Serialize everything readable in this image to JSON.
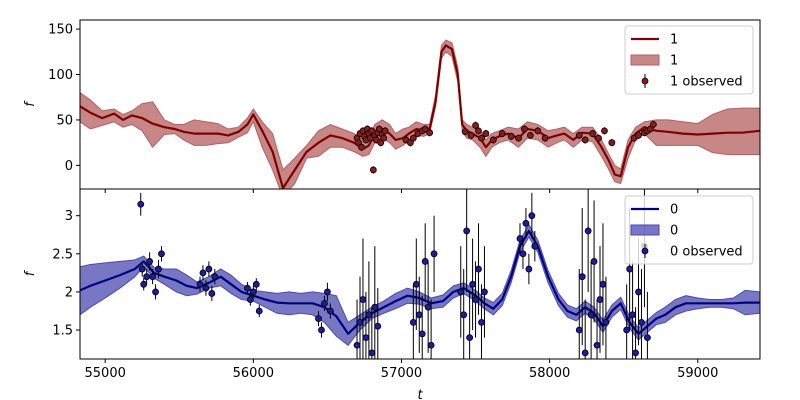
{
  "chart_data": [
    {
      "type": "line",
      "panel": "top",
      "ylabel": "f",
      "xlabel": "",
      "xlim": [
        54830,
        59420
      ],
      "ylim": [
        -26,
        160
      ],
      "yticks": [
        0,
        50,
        100,
        150
      ],
      "xticks": [
        55000,
        56000,
        57000,
        58000,
        59000
      ],
      "show_xtick_labels": false,
      "grid": false,
      "legend_placement": "top-right",
      "colors": {
        "line": "#800000",
        "band": "#b45f5f",
        "point": "#8b1a1a"
      },
      "legend": [
        {
          "kind": "line",
          "label": "1"
        },
        {
          "kind": "band",
          "label": "1"
        },
        {
          "kind": "errorbar",
          "label": "1 observed"
        }
      ],
      "series": [
        {
          "name": "1",
          "x": [
            54830,
            54900,
            54980,
            55060,
            55120,
            55180,
            55250,
            55320,
            55400,
            55470,
            55530,
            55600,
            55680,
            55760,
            55830,
            55900,
            55960,
            56000,
            56060,
            56130,
            56200,
            56280,
            56360,
            56440,
            56520,
            56600,
            56680,
            56740,
            56780,
            56820,
            56870,
            56920,
            56960,
            57010,
            57050,
            57100,
            57150,
            57190,
            57230,
            57270,
            57300,
            57340,
            57380,
            57410,
            57440,
            57480,
            57530,
            57570,
            57610,
            57660,
            57720,
            57790,
            57850,
            57920,
            57990,
            58050,
            58100,
            58160,
            58220,
            58290,
            58350,
            58400,
            58440,
            58480,
            58530,
            58580,
            58640,
            58720,
            58800,
            58900,
            59000,
            59100,
            59200,
            59300,
            59420
          ],
          "y": [
            65,
            58,
            52,
            57,
            50,
            55,
            52,
            46,
            42,
            40,
            37,
            35,
            35,
            35,
            33,
            37,
            45,
            56,
            38,
            15,
            -25,
            -5,
            15,
            25,
            33,
            30,
            25,
            18,
            22,
            35,
            40,
            35,
            28,
            30,
            35,
            40,
            38,
            40,
            70,
            125,
            132,
            128,
            100,
            45,
            38,
            35,
            30,
            20,
            28,
            32,
            35,
            30,
            40,
            38,
            30,
            33,
            35,
            28,
            36,
            35,
            20,
            5,
            -10,
            -12,
            20,
            35,
            42,
            38,
            37,
            35,
            34,
            35,
            36,
            36,
            38
          ],
          "lower": [
            48,
            40,
            44,
            48,
            42,
            45,
            38,
            20,
            34,
            35,
            28,
            22,
            22,
            24,
            25,
            31,
            36,
            48,
            20,
            -5,
            -35,
            -20,
            8,
            10,
            20,
            20,
            15,
            10,
            12,
            25,
            30,
            25,
            18,
            22,
            28,
            33,
            32,
            35,
            65,
            118,
            125,
            120,
            92,
            38,
            30,
            28,
            20,
            10,
            20,
            25,
            28,
            20,
            30,
            28,
            20,
            25,
            28,
            20,
            28,
            26,
            10,
            -5,
            -18,
            -20,
            8,
            28,
            35,
            22,
            22,
            22,
            22,
            14,
            12,
            12,
            12
          ],
          "upper": [
            80,
            72,
            60,
            62,
            56,
            60,
            68,
            70,
            50,
            45,
            45,
            50,
            48,
            46,
            40,
            42,
            52,
            62,
            48,
            35,
            -5,
            8,
            22,
            38,
            45,
            40,
            35,
            28,
            30,
            45,
            50,
            45,
            35,
            40,
            42,
            48,
            45,
            45,
            78,
            132,
            138,
            135,
            108,
            50,
            45,
            42,
            40,
            28,
            35,
            38,
            42,
            40,
            48,
            45,
            38,
            40,
            42,
            35,
            42,
            42,
            28,
            12,
            0,
            -4,
            28,
            42,
            48,
            50,
            50,
            48,
            46,
            56,
            62,
            63,
            63
          ]
        }
      ],
      "observed": {
        "name": "1 observed",
        "x": [
          56700,
          56710,
          56720,
          56730,
          56740,
          56750,
          56760,
          56770,
          56780,
          56790,
          56800,
          56810,
          56820,
          56830,
          56840,
          56850,
          56860,
          56870,
          56880,
          56890,
          57030,
          57060,
          57080,
          57110,
          57140,
          57160,
          57190,
          57430,
          57470,
          57500,
          57520,
          57540,
          57570,
          57620,
          57680,
          57740,
          57790,
          57830,
          57870,
          57920,
          57970,
          58200,
          58240,
          58290,
          58330,
          58370,
          58420,
          58570,
          58600,
          58640,
          58660,
          58680,
          58700
        ],
        "y": [
          30,
          25,
          35,
          20,
          38,
          32,
          28,
          40,
          35,
          30,
          38,
          -5,
          33,
          28,
          36,
          40,
          25,
          34,
          30,
          38,
          28,
          25,
          30,
          35,
          38,
          40,
          36,
          37,
          33,
          44,
          38,
          30,
          35,
          28,
          35,
          32,
          30,
          40,
          33,
          38,
          30,
          33,
          28,
          35,
          30,
          38,
          25,
          30,
          33,
          36,
          38,
          40,
          45
        ],
        "err": [
          4,
          4,
          4,
          4,
          4,
          4,
          4,
          4,
          4,
          4,
          4,
          4,
          4,
          4,
          4,
          4,
          4,
          4,
          4,
          4,
          4,
          4,
          4,
          4,
          4,
          4,
          4,
          4,
          4,
          4,
          4,
          4,
          4,
          4,
          4,
          4,
          4,
          4,
          4,
          4,
          4,
          4,
          4,
          4,
          4,
          4,
          4,
          4,
          4,
          4,
          4,
          4,
          4
        ]
      }
    },
    {
      "type": "line",
      "panel": "bottom",
      "ylabel": "f",
      "xlabel": "t",
      "xlim": [
        54830,
        59420
      ],
      "ylim": [
        1.12,
        3.35
      ],
      "yticks": [
        1.5,
        2.0,
        2.5,
        3.0
      ],
      "xticks": [
        55000,
        56000,
        57000,
        58000,
        59000
      ],
      "show_xtick_labels": true,
      "grid": false,
      "legend_placement": "top-right",
      "colors": {
        "line": "#000080",
        "band": "#4a4ab0",
        "point": "#1c1ca0"
      },
      "legend": [
        {
          "kind": "line",
          "label": "0"
        },
        {
          "kind": "band",
          "label": "0"
        },
        {
          "kind": "errorbar",
          "label": "0 observed"
        }
      ],
      "series": [
        {
          "name": "0",
          "x": [
            54830,
            54900,
            55000,
            55100,
            55200,
            55260,
            55330,
            55400,
            55480,
            55550,
            55620,
            55700,
            55780,
            55850,
            55920,
            56000,
            56080,
            56160,
            56240,
            56320,
            56400,
            56480,
            56560,
            56640,
            56720,
            56800,
            56880,
            56960,
            57040,
            57120,
            57200,
            57280,
            57350,
            57420,
            57500,
            57560,
            57620,
            57680,
            57740,
            57800,
            57860,
            57920,
            57990,
            58060,
            58120,
            58180,
            58240,
            58300,
            58360,
            58420,
            58480,
            58540,
            58600,
            58660,
            58720,
            58780,
            58850,
            58920,
            59000,
            59080,
            59160,
            59240,
            59320,
            59420
          ],
          "y": [
            2.02,
            2.08,
            2.15,
            2.22,
            2.3,
            2.4,
            2.25,
            2.2,
            2.15,
            2.08,
            2.05,
            2.12,
            2.2,
            2.1,
            2.0,
            1.95,
            1.9,
            1.86,
            1.85,
            1.85,
            1.85,
            1.8,
            1.68,
            1.45,
            1.6,
            1.72,
            1.8,
            1.88,
            1.95,
            1.92,
            1.85,
            1.88,
            2.0,
            2.05,
            1.95,
            1.85,
            1.78,
            1.9,
            2.2,
            2.6,
            2.8,
            2.6,
            2.2,
            1.9,
            1.75,
            1.7,
            1.8,
            1.72,
            1.55,
            1.75,
            1.85,
            1.6,
            1.45,
            1.55,
            1.65,
            1.7,
            1.8,
            1.85,
            1.85,
            1.85,
            1.85,
            1.85,
            1.86,
            1.86
          ],
          "lower": [
            1.7,
            1.8,
            1.92,
            2.05,
            2.2,
            2.33,
            2.18,
            2.1,
            2.0,
            1.95,
            1.97,
            2.05,
            2.08,
            1.98,
            1.9,
            1.88,
            1.8,
            1.72,
            1.7,
            1.72,
            1.7,
            1.6,
            1.42,
            1.3,
            1.5,
            1.65,
            1.72,
            1.78,
            1.85,
            1.84,
            1.78,
            1.8,
            1.92,
            1.98,
            1.88,
            1.78,
            1.7,
            1.82,
            2.12,
            2.52,
            2.72,
            2.52,
            2.12,
            1.82,
            1.67,
            1.62,
            1.72,
            1.64,
            1.47,
            1.67,
            1.77,
            1.52,
            1.37,
            1.47,
            1.57,
            1.6,
            1.7,
            1.75,
            1.78,
            1.8,
            1.8,
            1.78,
            1.7,
            1.72
          ],
          "upper": [
            2.33,
            2.36,
            2.38,
            2.4,
            2.42,
            2.47,
            2.32,
            2.3,
            2.3,
            2.22,
            2.13,
            2.2,
            2.3,
            2.22,
            2.1,
            2.02,
            2.0,
            1.98,
            2.0,
            1.98,
            2.0,
            1.98,
            1.95,
            1.6,
            1.7,
            1.8,
            1.88,
            1.98,
            2.05,
            2.0,
            1.92,
            1.96,
            2.08,
            2.12,
            2.02,
            1.92,
            1.86,
            1.98,
            2.28,
            2.68,
            2.88,
            2.68,
            2.28,
            1.98,
            1.83,
            1.78,
            1.88,
            1.8,
            1.63,
            1.83,
            1.93,
            1.68,
            1.53,
            1.63,
            1.73,
            1.8,
            1.9,
            1.95,
            1.92,
            1.9,
            1.9,
            1.92,
            2.02,
            2.0
          ]
        }
      ],
      "observed": {
        "name": "0 observed",
        "x": [
          55240,
          55250,
          55260,
          55280,
          55300,
          55320,
          55340,
          55360,
          55380,
          55640,
          55660,
          55680,
          55700,
          55720,
          55740,
          55960,
          55980,
          56000,
          56020,
          56040,
          56440,
          56460,
          56480,
          56500,
          56520,
          56700,
          56720,
          56740,
          56760,
          56780,
          56800,
          56820,
          56840,
          57080,
          57100,
          57120,
          57140,
          57160,
          57180,
          57200,
          57220,
          57400,
          57420,
          57440,
          57460,
          57480,
          57500,
          57520,
          57540,
          57560,
          57800,
          57820,
          57840,
          57860,
          57880,
          57900,
          58200,
          58220,
          58240,
          58260,
          58280,
          58300,
          58320,
          58340,
          58360,
          58380,
          58520,
          58540,
          58560,
          58580,
          58600,
          58620,
          58640,
          58660
        ],
        "y": [
          3.15,
          2.3,
          2.1,
          2.2,
          2.4,
          2.2,
          2.0,
          2.3,
          2.5,
          2.1,
          2.25,
          2.05,
          2.3,
          1.98,
          2.2,
          2.05,
          1.9,
          2.0,
          2.1,
          1.75,
          1.65,
          1.5,
          1.85,
          2.0,
          1.75,
          1.3,
          1.6,
          1.9,
          1.4,
          1.7,
          1.2,
          1.8,
          1.55,
          1.6,
          2.1,
          1.7,
          1.45,
          2.4,
          1.8,
          1.3,
          2.5,
          2.0,
          1.7,
          2.8,
          1.4,
          2.1,
          1.9,
          2.3,
          1.6,
          2.0,
          2.7,
          2.5,
          2.9,
          2.3,
          3.0,
          2.6,
          1.5,
          2.2,
          1.2,
          2.8,
          1.7,
          2.4,
          1.3,
          1.9,
          2.1,
          1.6,
          1.5,
          2.3,
          1.7,
          1.2,
          2.0,
          1.6,
          2.6,
          1.4
        ],
        "err": [
          0.15,
          0.1,
          0.08,
          0.1,
          0.12,
          0.1,
          0.1,
          0.12,
          0.1,
          0.1,
          0.1,
          0.1,
          0.1,
          0.1,
          0.1,
          0.08,
          0.08,
          0.08,
          0.08,
          0.08,
          0.1,
          0.1,
          0.1,
          0.12,
          0.1,
          0.6,
          0.6,
          0.8,
          0.6,
          0.7,
          0.6,
          0.8,
          0.5,
          0.5,
          0.6,
          0.5,
          0.5,
          0.5,
          0.6,
          0.6,
          0.5,
          0.6,
          0.6,
          0.8,
          0.6,
          0.6,
          0.5,
          0.6,
          0.5,
          0.6,
          0.2,
          0.2,
          0.2,
          0.2,
          0.3,
          0.2,
          0.8,
          0.9,
          0.7,
          0.8,
          0.7,
          0.8,
          0.6,
          0.7,
          0.8,
          0.6,
          0.6,
          0.8,
          0.7,
          0.6,
          0.7,
          0.7,
          0.8,
          0.6
        ]
      }
    }
  ]
}
